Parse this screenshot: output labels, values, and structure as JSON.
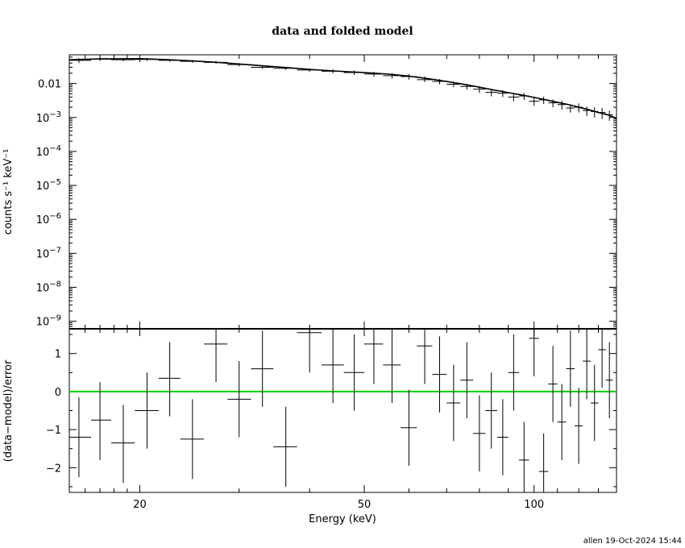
{
  "chart_data": [
    {
      "type": "scatter",
      "title": "data and folded model",
      "xlabel": "",
      "ylabel": "counts s⁻¹ keV⁻¹",
      "xscale": "log",
      "yscale": "log",
      "xlim": [
        15,
        140
      ],
      "ylim": [
        6e-10,
        0.07
      ],
      "yticks": [
        {
          "value": 0.01,
          "label": "0.01"
        },
        {
          "value": 0.001,
          "base": "10",
          "exp": "−3"
        },
        {
          "value": 0.0001,
          "base": "10",
          "exp": "−4"
        },
        {
          "value": 1e-05,
          "base": "10",
          "exp": "−5"
        },
        {
          "value": 1e-06,
          "base": "10",
          "exp": "−6"
        },
        {
          "value": 1e-07,
          "base": "10",
          "exp": "−7"
        },
        {
          "value": 1e-08,
          "base": "10",
          "exp": "−8"
        },
        {
          "value": 1e-09,
          "base": "10",
          "exp": "−9"
        }
      ],
      "series": [
        {
          "kind": "data",
          "color": "#000000",
          "points": [
            {
              "x": 15.6,
              "x_lo": 15.0,
              "x_hi": 16.4,
              "y": 0.048,
              "y_lo": 0.04,
              "y_hi": 0.056
            },
            {
              "x": 17.0,
              "x_lo": 16.4,
              "x_hi": 17.8,
              "y": 0.052,
              "y_lo": 0.046,
              "y_hi": 0.058
            },
            {
              "x": 18.7,
              "x_lo": 17.8,
              "x_hi": 19.6,
              "y": 0.05,
              "y_lo": 0.045,
              "y_hi": 0.055
            },
            {
              "x": 20.6,
              "x_lo": 19.6,
              "x_hi": 21.6,
              "y": 0.051,
              "y_lo": 0.046,
              "y_hi": 0.056
            },
            {
              "x": 22.6,
              "x_lo": 21.6,
              "x_hi": 23.6,
              "y": 0.048,
              "y_lo": 0.044,
              "y_hi": 0.052
            },
            {
              "x": 24.8,
              "x_lo": 23.6,
              "x_hi": 26.0,
              "y": 0.045,
              "y_lo": 0.041,
              "y_hi": 0.049
            },
            {
              "x": 27.3,
              "x_lo": 26.0,
              "x_hi": 28.6,
              "y": 0.042,
              "y_lo": 0.038,
              "y_hi": 0.046
            },
            {
              "x": 30.0,
              "x_lo": 28.6,
              "x_hi": 31.5,
              "y": 0.036,
              "y_lo": 0.032,
              "y_hi": 0.04
            },
            {
              "x": 33.0,
              "x_lo": 31.5,
              "x_hi": 34.5,
              "y": 0.03,
              "y_lo": 0.027,
              "y_hi": 0.033
            },
            {
              "x": 36.3,
              "x_lo": 34.5,
              "x_hi": 38.0,
              "y": 0.028,
              "y_lo": 0.025,
              "y_hi": 0.031
            },
            {
              "x": 40.0,
              "x_lo": 38.0,
              "x_hi": 42.0,
              "y": 0.025,
              "y_lo": 0.022,
              "y_hi": 0.028
            },
            {
              "x": 44.0,
              "x_lo": 42.0,
              "x_hi": 46.0,
              "y": 0.023,
              "y_lo": 0.02,
              "y_hi": 0.026
            },
            {
              "x": 48.0,
              "x_lo": 46.0,
              "x_hi": 50.0,
              "y": 0.021,
              "y_lo": 0.018,
              "y_hi": 0.024
            },
            {
              "x": 52.0,
              "x_lo": 50.0,
              "x_hi": 54.0,
              "y": 0.019,
              "y_lo": 0.016,
              "y_hi": 0.022
            },
            {
              "x": 56.0,
              "x_lo": 54.0,
              "x_hi": 58.0,
              "y": 0.017,
              "y_lo": 0.014,
              "y_hi": 0.02
            },
            {
              "x": 60.0,
              "x_lo": 58.0,
              "x_hi": 62.0,
              "y": 0.016,
              "y_lo": 0.013,
              "y_hi": 0.019
            },
            {
              "x": 64.0,
              "x_lo": 62.0,
              "x_hi": 66.0,
              "y": 0.013,
              "y_lo": 0.011,
              "y_hi": 0.016
            },
            {
              "x": 68.0,
              "x_lo": 66.0,
              "x_hi": 70.0,
              "y": 0.0115,
              "y_lo": 0.0095,
              "y_hi": 0.0135
            },
            {
              "x": 72.0,
              "x_lo": 70.0,
              "x_hi": 74.0,
              "y": 0.0095,
              "y_lo": 0.0078,
              "y_hi": 0.0113
            },
            {
              "x": 76.0,
              "x_lo": 74.0,
              "x_hi": 78.0,
              "y": 0.0082,
              "y_lo": 0.0066,
              "y_hi": 0.0098
            },
            {
              "x": 80.0,
              "x_lo": 78.0,
              "x_hi": 82.0,
              "y": 0.0068,
              "y_lo": 0.0053,
              "y_hi": 0.0083
            },
            {
              "x": 84.0,
              "x_lo": 82.0,
              "x_hi": 86.0,
              "y": 0.0055,
              "y_lo": 0.0042,
              "y_hi": 0.0068
            },
            {
              "x": 88.0,
              "x_lo": 86.0,
              "x_hi": 90.0,
              "y": 0.0052,
              "y_lo": 0.004,
              "y_hi": 0.0064
            },
            {
              "x": 92.0,
              "x_lo": 90.0,
              "x_hi": 94.0,
              "y": 0.004,
              "y_lo": 0.003,
              "y_hi": 0.005
            },
            {
              "x": 96.0,
              "x_lo": 94.0,
              "x_hi": 98.0,
              "y": 0.0043,
              "y_lo": 0.0033,
              "y_hi": 0.0053
            },
            {
              "x": 100.0,
              "x_lo": 98.0,
              "x_hi": 102.0,
              "y": 0.003,
              "y_lo": 0.0022,
              "y_hi": 0.0038
            },
            {
              "x": 104.0,
              "x_lo": 102.0,
              "x_hi": 106.0,
              "y": 0.0033,
              "y_lo": 0.0025,
              "y_hi": 0.0041
            },
            {
              "x": 108.0,
              "x_lo": 106.0,
              "x_hi": 110.0,
              "y": 0.0027,
              "y_lo": 0.002,
              "y_hi": 0.0034
            },
            {
              "x": 112.0,
              "x_lo": 110.0,
              "x_hi": 114.0,
              "y": 0.0024,
              "y_lo": 0.0017,
              "y_hi": 0.0031
            },
            {
              "x": 116.0,
              "x_lo": 114.0,
              "x_hi": 118.0,
              "y": 0.0019,
              "y_lo": 0.0014,
              "y_hi": 0.0024
            },
            {
              "x": 120.0,
              "x_lo": 118.0,
              "x_hi": 122.0,
              "y": 0.002,
              "y_lo": 0.0014,
              "y_hi": 0.0026
            },
            {
              "x": 124.0,
              "x_lo": 122.0,
              "x_hi": 126.0,
              "y": 0.0016,
              "y_lo": 0.0011,
              "y_hi": 0.0021
            },
            {
              "x": 128.0,
              "x_lo": 126.0,
              "x_hi": 130.0,
              "y": 0.0015,
              "y_lo": 0.001,
              "y_hi": 0.002
            },
            {
              "x": 132.0,
              "x_lo": 130.0,
              "x_hi": 134.0,
              "y": 0.0014,
              "y_lo": 0.0009,
              "y_hi": 0.0019
            },
            {
              "x": 136.0,
              "x_lo": 134.0,
              "x_hi": 138.0,
              "y": 0.0012,
              "y_lo": 0.0008,
              "y_hi": 0.0016
            }
          ]
        },
        {
          "kind": "model",
          "color": "#000000",
          "x": [
            15,
            17,
            20,
            22,
            25,
            28,
            31,
            35,
            40,
            45,
            50,
            55,
            60,
            65,
            70,
            75,
            80,
            85,
            90,
            95,
            100,
            105,
            110,
            115,
            120,
            125,
            130,
            135,
            140
          ],
          "y": [
            0.05,
            0.053,
            0.054,
            0.051,
            0.046,
            0.041,
            0.036,
            0.031,
            0.026,
            0.023,
            0.021,
            0.019,
            0.0165,
            0.0138,
            0.0115,
            0.0095,
            0.0078,
            0.0064,
            0.0054,
            0.0046,
            0.0039,
            0.0033,
            0.0028,
            0.0024,
            0.002,
            0.0017,
            0.0014,
            0.0012,
            0.00095
          ]
        }
      ]
    },
    {
      "type": "scatter",
      "title": "",
      "xlabel": "Energy (keV)",
      "ylabel": "(data−model)/error",
      "xscale": "log",
      "xlim": [
        15,
        140
      ],
      "ylim": [
        -2.65,
        1.65
      ],
      "xticks": [
        20,
        50,
        100
      ],
      "yticks": [
        -2,
        -1,
        0,
        1
      ],
      "zero_line_color": "#00cc00",
      "series": [
        {
          "kind": "residuals",
          "color": "#000000",
          "points": [
            {
              "x": 15.6,
              "x_lo": 15.0,
              "x_hi": 16.4,
              "y": -1.2,
              "y_lo": -2.25,
              "y_hi": -0.15
            },
            {
              "x": 17.0,
              "x_lo": 16.4,
              "x_hi": 17.8,
              "y": -0.75,
              "y_lo": -1.8,
              "y_hi": 0.25
            },
            {
              "x": 18.7,
              "x_lo": 17.8,
              "x_hi": 19.6,
              "y": -1.35,
              "y_lo": -2.4,
              "y_hi": -0.35
            },
            {
              "x": 20.6,
              "x_lo": 19.6,
              "x_hi": 21.6,
              "y": -0.5,
              "y_lo": -1.5,
              "y_hi": 0.5
            },
            {
              "x": 22.6,
              "x_lo": 21.6,
              "x_hi": 23.6,
              "y": 0.35,
              "y_lo": -0.65,
              "y_hi": 1.3
            },
            {
              "x": 24.8,
              "x_lo": 23.6,
              "x_hi": 26.0,
              "y": -1.25,
              "y_lo": -2.3,
              "y_hi": -0.2
            },
            {
              "x": 27.3,
              "x_lo": 26.0,
              "x_hi": 28.6,
              "y": 1.25,
              "y_lo": 0.25,
              "y_hi": 1.65
            },
            {
              "x": 30.0,
              "x_lo": 28.6,
              "x_hi": 31.5,
              "y": -0.2,
              "y_lo": -1.2,
              "y_hi": 0.8
            },
            {
              "x": 33.0,
              "x_lo": 31.5,
              "x_hi": 34.5,
              "y": 0.6,
              "y_lo": -0.4,
              "y_hi": 1.6
            },
            {
              "x": 36.3,
              "x_lo": 34.5,
              "x_hi": 38.0,
              "y": -1.45,
              "y_lo": -2.5,
              "y_hi": -0.4
            },
            {
              "x": 40.0,
              "x_lo": 38.0,
              "x_hi": 42.0,
              "y": 1.55,
              "y_lo": 0.5,
              "y_hi": 1.65
            },
            {
              "x": 44.0,
              "x_lo": 42.0,
              "x_hi": 46.0,
              "y": 0.7,
              "y_lo": -0.3,
              "y_hi": 1.65
            },
            {
              "x": 48.0,
              "x_lo": 46.0,
              "x_hi": 50.0,
              "y": 0.5,
              "y_lo": -0.5,
              "y_hi": 1.5
            },
            {
              "x": 52.0,
              "x_lo": 50.0,
              "x_hi": 54.0,
              "y": 1.25,
              "y_lo": 0.2,
              "y_hi": 1.65
            },
            {
              "x": 56.0,
              "x_lo": 54.0,
              "x_hi": 58.0,
              "y": 0.7,
              "y_lo": -0.3,
              "y_hi": 1.65
            },
            {
              "x": 60.0,
              "x_lo": 58.0,
              "x_hi": 62.0,
              "y": -0.95,
              "y_lo": -1.95,
              "y_hi": 0.05
            },
            {
              "x": 64.0,
              "x_lo": 62.0,
              "x_hi": 66.0,
              "y": 1.2,
              "y_lo": 0.2,
              "y_hi": 1.65
            },
            {
              "x": 68.0,
              "x_lo": 66.0,
              "x_hi": 70.0,
              "y": 0.45,
              "y_lo": -0.55,
              "y_hi": 1.45
            },
            {
              "x": 72.0,
              "x_lo": 70.0,
              "x_hi": 74.0,
              "y": -0.3,
              "y_lo": -1.3,
              "y_hi": 0.7
            },
            {
              "x": 76.0,
              "x_lo": 74.0,
              "x_hi": 78.0,
              "y": 0.3,
              "y_lo": -0.7,
              "y_hi": 1.3
            },
            {
              "x": 80.0,
              "x_lo": 78.0,
              "x_hi": 82.0,
              "y": -1.1,
              "y_lo": -2.1,
              "y_hi": -0.1
            },
            {
              "x": 84.0,
              "x_lo": 82.0,
              "x_hi": 86.0,
              "y": -0.5,
              "y_lo": -1.5,
              "y_hi": 0.5
            },
            {
              "x": 88.0,
              "x_lo": 86.0,
              "x_hi": 90.0,
              "y": -1.2,
              "y_lo": -2.2,
              "y_hi": -0.2
            },
            {
              "x": 92.0,
              "x_lo": 90.0,
              "x_hi": 94.0,
              "y": 0.5,
              "y_lo": -0.5,
              "y_hi": 1.5
            },
            {
              "x": 96.0,
              "x_lo": 94.0,
              "x_hi": 98.0,
              "y": -1.8,
              "y_lo": -2.65,
              "y_hi": -0.8
            },
            {
              "x": 100.0,
              "x_lo": 98.0,
              "x_hi": 102.0,
              "y": 1.4,
              "y_lo": 0.4,
              "y_hi": 1.65
            },
            {
              "x": 104.0,
              "x_lo": 102.0,
              "x_hi": 106.0,
              "y": -2.1,
              "y_lo": -2.65,
              "y_hi": -1.1
            },
            {
              "x": 108.0,
              "x_lo": 106.0,
              "x_hi": 110.0,
              "y": 0.2,
              "y_lo": -0.8,
              "y_hi": 1.2
            },
            {
              "x": 112.0,
              "x_lo": 110.0,
              "x_hi": 114.0,
              "y": -0.8,
              "y_lo": -1.8,
              "y_hi": 0.2
            },
            {
              "x": 116.0,
              "x_lo": 114.0,
              "x_hi": 118.0,
              "y": 0.6,
              "y_lo": -0.4,
              "y_hi": 1.6
            },
            {
              "x": 120.0,
              "x_lo": 118.0,
              "x_hi": 122.0,
              "y": -0.9,
              "y_lo": -1.9,
              "y_hi": 0.1
            },
            {
              "x": 124.0,
              "x_lo": 122.0,
              "x_hi": 126.0,
              "y": 0.8,
              "y_lo": -0.2,
              "y_hi": 1.65
            },
            {
              "x": 128.0,
              "x_lo": 126.0,
              "x_hi": 130.0,
              "y": -0.3,
              "y_lo": -1.3,
              "y_hi": 0.7
            },
            {
              "x": 132.0,
              "x_lo": 130.0,
              "x_hi": 134.0,
              "y": 1.1,
              "y_lo": 0.1,
              "y_hi": 1.65
            },
            {
              "x": 136.0,
              "x_lo": 134.0,
              "x_hi": 138.0,
              "y": 0.3,
              "y_lo": -0.7,
              "y_hi": 1.3
            }
          ]
        }
      ]
    }
  ],
  "footer": "allen 19-Oct-2024 15:44"
}
